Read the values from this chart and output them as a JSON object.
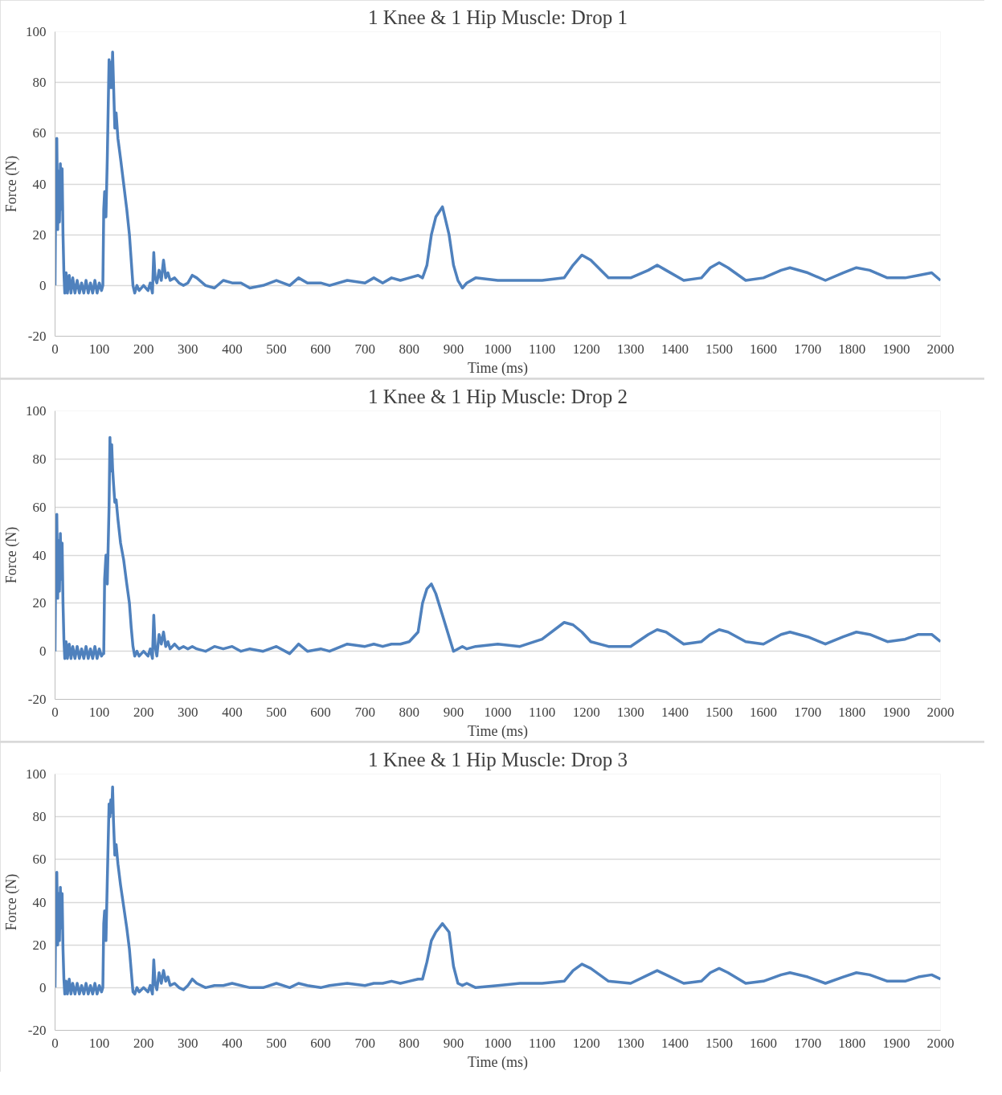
{
  "chart_data": [
    {
      "type": "line",
      "title": "1 Knee & 1 Hip Muscle: Drop 1",
      "xlabel": "Time (ms)",
      "ylabel": "Force (N)",
      "xlim": [
        0,
        2000
      ],
      "ylim": [
        -20,
        100
      ],
      "xticks": [
        0,
        100,
        200,
        300,
        400,
        500,
        600,
        700,
        800,
        900,
        1000,
        1100,
        1200,
        1300,
        1400,
        1500,
        1600,
        1700,
        1800,
        1900,
        2000
      ],
      "yticks": [
        -20,
        0,
        20,
        40,
        60,
        80,
        100
      ],
      "grid": "y",
      "marker": "none",
      "line_style": "solid",
      "x": [
        0,
        2,
        4,
        6,
        8,
        10,
        12,
        14,
        16,
        18,
        20,
        22,
        25,
        28,
        32,
        36,
        40,
        45,
        50,
        55,
        60,
        65,
        70,
        75,
        80,
        85,
        90,
        95,
        100,
        105,
        108,
        110,
        112,
        115,
        118,
        122,
        124,
        126,
        128,
        130,
        132,
        135,
        138,
        142,
        148,
        155,
        162,
        168,
        172,
        176,
        180,
        185,
        190,
        200,
        210,
        215,
        220,
        223,
        226,
        230,
        235,
        240,
        245,
        250,
        255,
        260,
        270,
        280,
        290,
        300,
        310,
        320,
        340,
        360,
        380,
        400,
        420,
        440,
        470,
        500,
        530,
        550,
        570,
        600,
        620,
        660,
        700,
        720,
        740,
        760,
        780,
        800,
        820,
        830,
        840,
        850,
        860,
        875,
        890,
        900,
        910,
        920,
        930,
        950,
        1000,
        1050,
        1100,
        1150,
        1170,
        1190,
        1210,
        1250,
        1300,
        1340,
        1360,
        1380,
        1420,
        1460,
        1480,
        1500,
        1520,
        1560,
        1600,
        1640,
        1660,
        1700,
        1740,
        1780,
        1810,
        1840,
        1880,
        1920,
        1950,
        1980,
        2000
      ],
      "series": [
        {
          "color": "#4f81bd",
          "values": [
            0,
            50,
            58,
            22,
            45,
            25,
            48,
            30,
            46,
            20,
            5,
            -3,
            5,
            -3,
            4,
            -3,
            3,
            -3,
            2,
            -3,
            1,
            -3,
            2,
            -3,
            1,
            -3,
            2,
            -3,
            1,
            -2,
            0,
            30,
            37,
            27,
            50,
            89,
            78,
            88,
            78,
            92,
            80,
            62,
            68,
            58,
            50,
            40,
            30,
            20,
            10,
            0,
            -3,
            0,
            -2,
            0,
            -2,
            1,
            -3,
            13,
            3,
            1,
            6,
            2,
            10,
            3,
            5,
            2,
            3,
            1,
            0,
            1,
            4,
            3,
            0,
            -1,
            2,
            1,
            1,
            -1,
            0,
            2,
            0,
            3,
            1,
            1,
            0,
            2,
            1,
            3,
            1,
            3,
            2,
            3,
            4,
            3,
            8,
            20,
            27,
            31,
            20,
            8,
            2,
            -1,
            1,
            3,
            2,
            2,
            2,
            3,
            8,
            12,
            10,
            3,
            3,
            6,
            8,
            6,
            2,
            3,
            7,
            9,
            7,
            2,
            3,
            6,
            7,
            5,
            2,
            5,
            7,
            6,
            3,
            3,
            4,
            5,
            2
          ]
        }
      ]
    },
    {
      "type": "line",
      "title": "1 Knee & 1 Hip Muscle: Drop 2",
      "xlabel": "Time (ms)",
      "ylabel": "Force (N)",
      "xlim": [
        0,
        2000
      ],
      "ylim": [
        -20,
        100
      ],
      "xticks": [
        0,
        100,
        200,
        300,
        400,
        500,
        600,
        700,
        800,
        900,
        1000,
        1100,
        1200,
        1300,
        1400,
        1500,
        1600,
        1700,
        1800,
        1900,
        2000
      ],
      "yticks": [
        -20,
        0,
        20,
        40,
        60,
        80,
        100
      ],
      "grid": "y",
      "marker": "none",
      "line_style": "solid",
      "x": [
        0,
        2,
        4,
        6,
        8,
        10,
        12,
        14,
        16,
        18,
        20,
        22,
        25,
        28,
        32,
        36,
        40,
        45,
        50,
        55,
        60,
        65,
        70,
        75,
        80,
        85,
        90,
        95,
        100,
        105,
        108,
        110,
        112,
        115,
        118,
        122,
        124,
        126,
        128,
        130,
        132,
        135,
        138,
        142,
        148,
        155,
        162,
        168,
        172,
        176,
        180,
        185,
        190,
        200,
        210,
        215,
        220,
        223,
        226,
        230,
        235,
        240,
        245,
        250,
        255,
        260,
        270,
        280,
        290,
        300,
        310,
        320,
        340,
        360,
        380,
        400,
        420,
        440,
        470,
        500,
        530,
        550,
        570,
        600,
        620,
        660,
        700,
        720,
        740,
        760,
        780,
        800,
        820,
        830,
        840,
        850,
        860,
        875,
        890,
        900,
        910,
        920,
        930,
        950,
        1000,
        1050,
        1100,
        1150,
        1170,
        1190,
        1210,
        1250,
        1300,
        1340,
        1360,
        1380,
        1420,
        1460,
        1480,
        1500,
        1520,
        1560,
        1600,
        1640,
        1660,
        1700,
        1740,
        1780,
        1810,
        1840,
        1880,
        1920,
        1950,
        1980,
        2000
      ],
      "series": [
        {
          "color": "#4f81bd",
          "values": [
            0,
            50,
            57,
            22,
            46,
            25,
            49,
            30,
            45,
            20,
            5,
            -3,
            4,
            -3,
            3,
            -3,
            2,
            -3,
            2,
            -3,
            1,
            -3,
            2,
            -3,
            1,
            -3,
            2,
            -3,
            1,
            -2,
            -1,
            -1,
            30,
            40,
            28,
            60,
            89,
            75,
            86,
            76,
            70,
            62,
            63,
            55,
            45,
            38,
            28,
            20,
            10,
            2,
            -2,
            0,
            -2,
            0,
            -2,
            1,
            -3,
            15,
            2,
            -2,
            7,
            3,
            8,
            2,
            4,
            1,
            3,
            1,
            2,
            1,
            2,
            1,
            0,
            2,
            1,
            2,
            0,
            1,
            0,
            2,
            -1,
            3,
            0,
            1,
            0,
            3,
            2,
            3,
            2,
            3,
            3,
            4,
            8,
            20,
            26,
            28,
            24,
            15,
            6,
            0,
            1,
            2,
            1,
            2,
            3,
            2,
            5,
            12,
            11,
            8,
            4,
            2,
            2,
            7,
            9,
            8,
            3,
            4,
            7,
            9,
            8,
            4,
            3,
            7,
            8,
            6,
            3,
            6,
            8,
            7,
            4,
            5,
            7,
            7,
            4
          ]
        }
      ]
    },
    {
      "type": "line",
      "title": "1 Knee & 1 Hip Muscle: Drop 3",
      "xlabel": "Time (ms)",
      "ylabel": "Force (N)",
      "xlim": [
        0,
        2000
      ],
      "ylim": [
        -20,
        100
      ],
      "xticks": [
        0,
        100,
        200,
        300,
        400,
        500,
        600,
        700,
        800,
        900,
        1000,
        1100,
        1200,
        1300,
        1400,
        1500,
        1600,
        1700,
        1800,
        1900,
        2000
      ],
      "yticks": [
        -20,
        0,
        20,
        40,
        60,
        80,
        100
      ],
      "grid": "y",
      "marker": "none",
      "line_style": "solid",
      "x": [
        0,
        2,
        4,
        6,
        8,
        10,
        12,
        14,
        16,
        18,
        20,
        22,
        25,
        28,
        32,
        36,
        40,
        45,
        50,
        55,
        60,
        65,
        70,
        75,
        80,
        85,
        90,
        95,
        100,
        105,
        108,
        110,
        112,
        115,
        118,
        122,
        124,
        126,
        128,
        130,
        132,
        135,
        138,
        142,
        148,
        155,
        162,
        168,
        172,
        176,
        180,
        185,
        190,
        200,
        210,
        215,
        220,
        223,
        226,
        230,
        235,
        240,
        245,
        250,
        255,
        260,
        270,
        280,
        290,
        300,
        310,
        320,
        340,
        360,
        380,
        400,
        420,
        440,
        470,
        500,
        530,
        550,
        570,
        600,
        620,
        660,
        700,
        720,
        740,
        760,
        780,
        800,
        820,
        830,
        840,
        850,
        860,
        875,
        890,
        900,
        910,
        920,
        930,
        950,
        1000,
        1050,
        1100,
        1150,
        1170,
        1190,
        1210,
        1250,
        1300,
        1340,
        1360,
        1380,
        1420,
        1460,
        1480,
        1500,
        1520,
        1560,
        1600,
        1640,
        1660,
        1700,
        1740,
        1780,
        1810,
        1840,
        1880,
        1920,
        1950,
        1980,
        2000
      ],
      "series": [
        {
          "color": "#4f81bd",
          "values": [
            0,
            48,
            54,
            20,
            44,
            22,
            47,
            28,
            44,
            18,
            4,
            -3,
            3,
            -3,
            4,
            -3,
            2,
            -3,
            2,
            -3,
            1,
            -3,
            2,
            -3,
            1,
            -3,
            2,
            -3,
            1,
            -2,
            0,
            30,
            36,
            22,
            50,
            86,
            80,
            88,
            82,
            94,
            78,
            62,
            67,
            58,
            48,
            38,
            28,
            18,
            8,
            -2,
            -3,
            0,
            -2,
            0,
            -2,
            1,
            -3,
            13,
            2,
            -1,
            7,
            2,
            8,
            3,
            5,
            1,
            2,
            0,
            -1,
            1,
            4,
            2,
            0,
            1,
            1,
            2,
            1,
            0,
            0,
            2,
            0,
            2,
            1,
            0,
            1,
            2,
            1,
            2,
            2,
            3,
            2,
            3,
            4,
            4,
            12,
            22,
            26,
            30,
            26,
            10,
            2,
            1,
            2,
            0,
            1,
            2,
            2,
            3,
            8,
            11,
            9,
            3,
            2,
            6,
            8,
            6,
            2,
            3,
            7,
            9,
            7,
            2,
            3,
            6,
            7,
            5,
            2,
            5,
            7,
            6,
            3,
            3,
            5,
            6,
            4
          ]
        }
      ]
    }
  ]
}
